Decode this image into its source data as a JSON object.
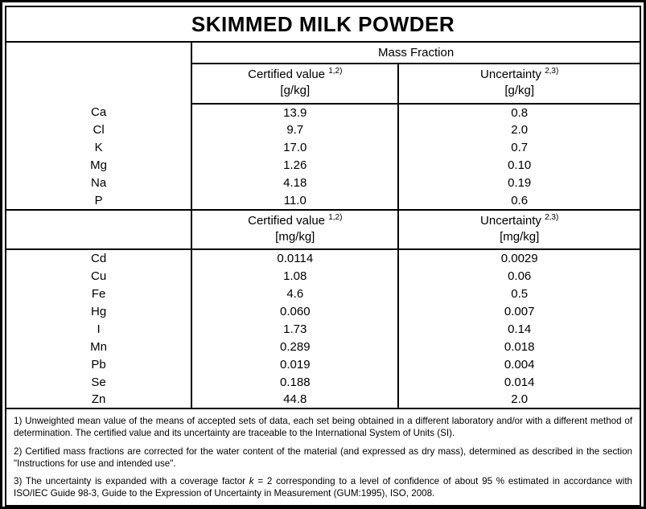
{
  "title": "SKIMMED MILK POWDER",
  "table": {
    "group_header": "Mass Fraction",
    "sections": [
      {
        "certified_label": "Certified value",
        "certified_sup": "1,2)",
        "certified_unit": "[g/kg]",
        "uncertainty_label": "Uncertainty",
        "uncertainty_sup": "2,3)",
        "uncertainty_unit": "[g/kg]",
        "rows": [
          {
            "element": "Ca",
            "certified": "13.9",
            "uncertainty": "0.8"
          },
          {
            "element": "Cl",
            "certified": "9.7",
            "uncertainty": "2.0"
          },
          {
            "element": "K",
            "certified": "17.0",
            "uncertainty": "0.7"
          },
          {
            "element": "Mg",
            "certified": "1.26",
            "uncertainty": "0.10"
          },
          {
            "element": "Na",
            "certified": "4.18",
            "uncertainty": "0.19"
          },
          {
            "element": "P",
            "certified": "11.0",
            "uncertainty": "0.6"
          }
        ]
      },
      {
        "certified_label": "Certified value",
        "certified_sup": "1,2)",
        "certified_unit": "[mg/kg]",
        "uncertainty_label": "Uncertainty",
        "uncertainty_sup": "2,3)",
        "uncertainty_unit": "[mg/kg]",
        "rows": [
          {
            "element": "Cd",
            "certified": "0.0114",
            "uncertainty": "0.0029"
          },
          {
            "element": "Cu",
            "certified": "1.08",
            "uncertainty": "0.06"
          },
          {
            "element": "Fe",
            "certified": "4.6",
            "uncertainty": "0.5"
          },
          {
            "element": "Hg",
            "certified": "0.060",
            "uncertainty": "0.007"
          },
          {
            "element": "I",
            "certified": "1.73",
            "uncertainty": "0.14"
          },
          {
            "element": "Mn",
            "certified": "0.289",
            "uncertainty": "0.018"
          },
          {
            "element": "Pb",
            "certified": "0.019",
            "uncertainty": "0.004"
          },
          {
            "element": "Se",
            "certified": "0.188",
            "uncertainty": "0.014"
          },
          {
            "element": "Zn",
            "certified": "44.8",
            "uncertainty": "2.0"
          }
        ]
      }
    ]
  },
  "footnotes": {
    "note1": "1) Unweighted mean value of the means of accepted sets of data, each set being obtained in a different laboratory and/or with a different method of determination. The certified value and its uncertainty are traceable to the International System of Units (SI).",
    "note2": "2) Certified mass fractions are corrected for the water content of the material (and expressed as dry mass), determined as described in the section \"Instructions for use and intended use\".",
    "note3_before": "3) The uncertainty is expanded with a coverage factor ",
    "note3_italic": "k",
    "note3_after": " = 2 corresponding to a level of confidence of about 95 % estimated in accordance with ISO/IEC Guide 98-3, Guide to the Expression of Uncertainty in Measurement (GUM:1995), ISO, 2008."
  },
  "colors": {
    "border": "#000000",
    "text": "#000000",
    "background": "#ffffff"
  }
}
